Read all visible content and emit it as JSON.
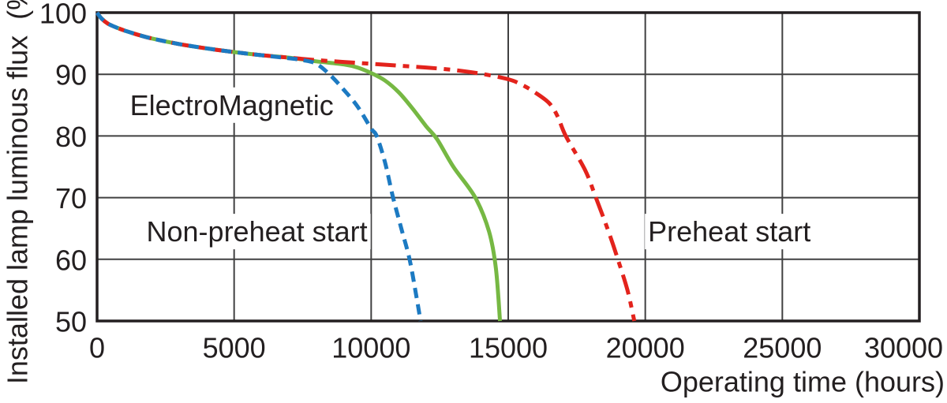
{
  "chart_data": {
    "type": "line",
    "title": "",
    "xlabel": "Operating time (hours)",
    "ylabel": "Installed lamp luminous flux  (%)",
    "xlim": [
      0,
      30000
    ],
    "ylim": [
      50,
      100
    ],
    "xticks": [
      0,
      5000,
      10000,
      15000,
      20000,
      25000,
      30000
    ],
    "yticks": [
      100,
      90,
      80,
      70,
      60,
      50
    ],
    "grid": true,
    "legend_position": "inline-annotations",
    "background_color": "#ffffff",
    "axis_color": "#231f20",
    "grid_color": "#404041",
    "series": [
      {
        "name": "ElectroMagnetic",
        "color": "#76b843",
        "style": "solid",
        "points": [
          [
            0,
            100
          ],
          [
            150,
            99.1
          ],
          [
            400,
            98.2
          ],
          [
            700,
            97.6
          ],
          [
            1000,
            97.1
          ],
          [
            1500,
            96.4
          ],
          [
            2000,
            95.8
          ],
          [
            3000,
            94.9
          ],
          [
            4000,
            94.2
          ],
          [
            5000,
            93.6
          ],
          [
            6000,
            93.1
          ],
          [
            7000,
            92.7
          ],
          [
            8000,
            92.1
          ],
          [
            9000,
            91.6
          ],
          [
            9500,
            91.1
          ],
          [
            10000,
            90.2
          ],
          [
            10500,
            89.0
          ],
          [
            11000,
            87.1
          ],
          [
            11500,
            84.5
          ],
          [
            12000,
            81.6
          ],
          [
            12400,
            79.5
          ],
          [
            13000,
            75.0
          ],
          [
            13800,
            70.0
          ],
          [
            14300,
            64.5
          ],
          [
            14550,
            58.5
          ],
          [
            14700,
            50
          ]
        ]
      },
      {
        "name": "Preheat start",
        "color": "#e3231c",
        "style": "dash-dot",
        "points": [
          [
            0,
            100
          ],
          [
            150,
            99.1
          ],
          [
            400,
            98.2
          ],
          [
            700,
            97.6
          ],
          [
            1000,
            97.1
          ],
          [
            1500,
            96.4
          ],
          [
            2000,
            95.8
          ],
          [
            3000,
            94.9
          ],
          [
            4000,
            94.2
          ],
          [
            5000,
            93.6
          ],
          [
            6000,
            93.1
          ],
          [
            7000,
            92.7
          ],
          [
            8000,
            92.3
          ],
          [
            9000,
            92.0
          ],
          [
            10000,
            91.7
          ],
          [
            11000,
            91.4
          ],
          [
            12000,
            91.1
          ],
          [
            13000,
            90.7
          ],
          [
            14000,
            90.1
          ],
          [
            15000,
            89.2
          ],
          [
            15500,
            88.3
          ],
          [
            16000,
            87.0
          ],
          [
            16500,
            85.3
          ],
          [
            16800,
            83.2
          ],
          [
            17100,
            80.0
          ],
          [
            17800,
            74.5
          ],
          [
            18200,
            70.0
          ],
          [
            18700,
            64.0
          ],
          [
            19000,
            60.0
          ],
          [
            19350,
            55.0
          ],
          [
            19600,
            50
          ]
        ]
      },
      {
        "name": "Non-preheat start",
        "color": "#1c7ac2",
        "style": "dashed",
        "points": [
          [
            0,
            100
          ],
          [
            150,
            99.1
          ],
          [
            400,
            98.2
          ],
          [
            700,
            97.6
          ],
          [
            1000,
            97.1
          ],
          [
            1500,
            96.4
          ],
          [
            2000,
            95.8
          ],
          [
            3000,
            94.9
          ],
          [
            4000,
            94.2
          ],
          [
            5000,
            93.6
          ],
          [
            6000,
            93.1
          ],
          [
            7000,
            92.6
          ],
          [
            7500,
            92.3
          ],
          [
            8000,
            91.7
          ],
          [
            8500,
            89.9
          ],
          [
            9000,
            87.5
          ],
          [
            9500,
            84.8
          ],
          [
            10000,
            81.2
          ],
          [
            10200,
            80.0
          ],
          [
            10500,
            75.8
          ],
          [
            10800,
            70.0
          ],
          [
            11100,
            65.0
          ],
          [
            11400,
            60.0
          ],
          [
            11650,
            54.0
          ],
          [
            11800,
            50
          ]
        ]
      }
    ],
    "annotations": [
      {
        "text": "ElectroMagnetic",
        "color": "#76b843",
        "x": 1200,
        "y": 85.0
      },
      {
        "text": "Non-preheat start",
        "color": "#1c7ac2",
        "x": 1800,
        "y": 64.5
      },
      {
        "text": "Preheat start",
        "color": "#e3231c",
        "x": 20100,
        "y": 64.5
      }
    ]
  }
}
